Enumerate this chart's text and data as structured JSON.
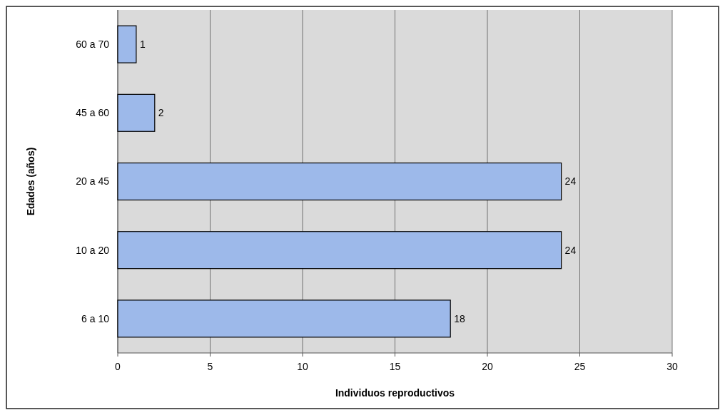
{
  "chart_data": {
    "type": "bar",
    "orientation": "horizontal",
    "categories": [
      "60 a 70",
      "45 a 60",
      "20 a 45",
      "10 a 20",
      "6 a 10"
    ],
    "values": [
      1,
      2,
      24,
      24,
      18
    ],
    "color": "#9db9ea",
    "xlim": [
      0,
      30
    ],
    "xticks": [
      0,
      5,
      10,
      15,
      20,
      25,
      30
    ],
    "grid": "x",
    "data_labels": true,
    "xlabel": "Individuos reproductivos",
    "ylabel": "Edades (años)"
  }
}
